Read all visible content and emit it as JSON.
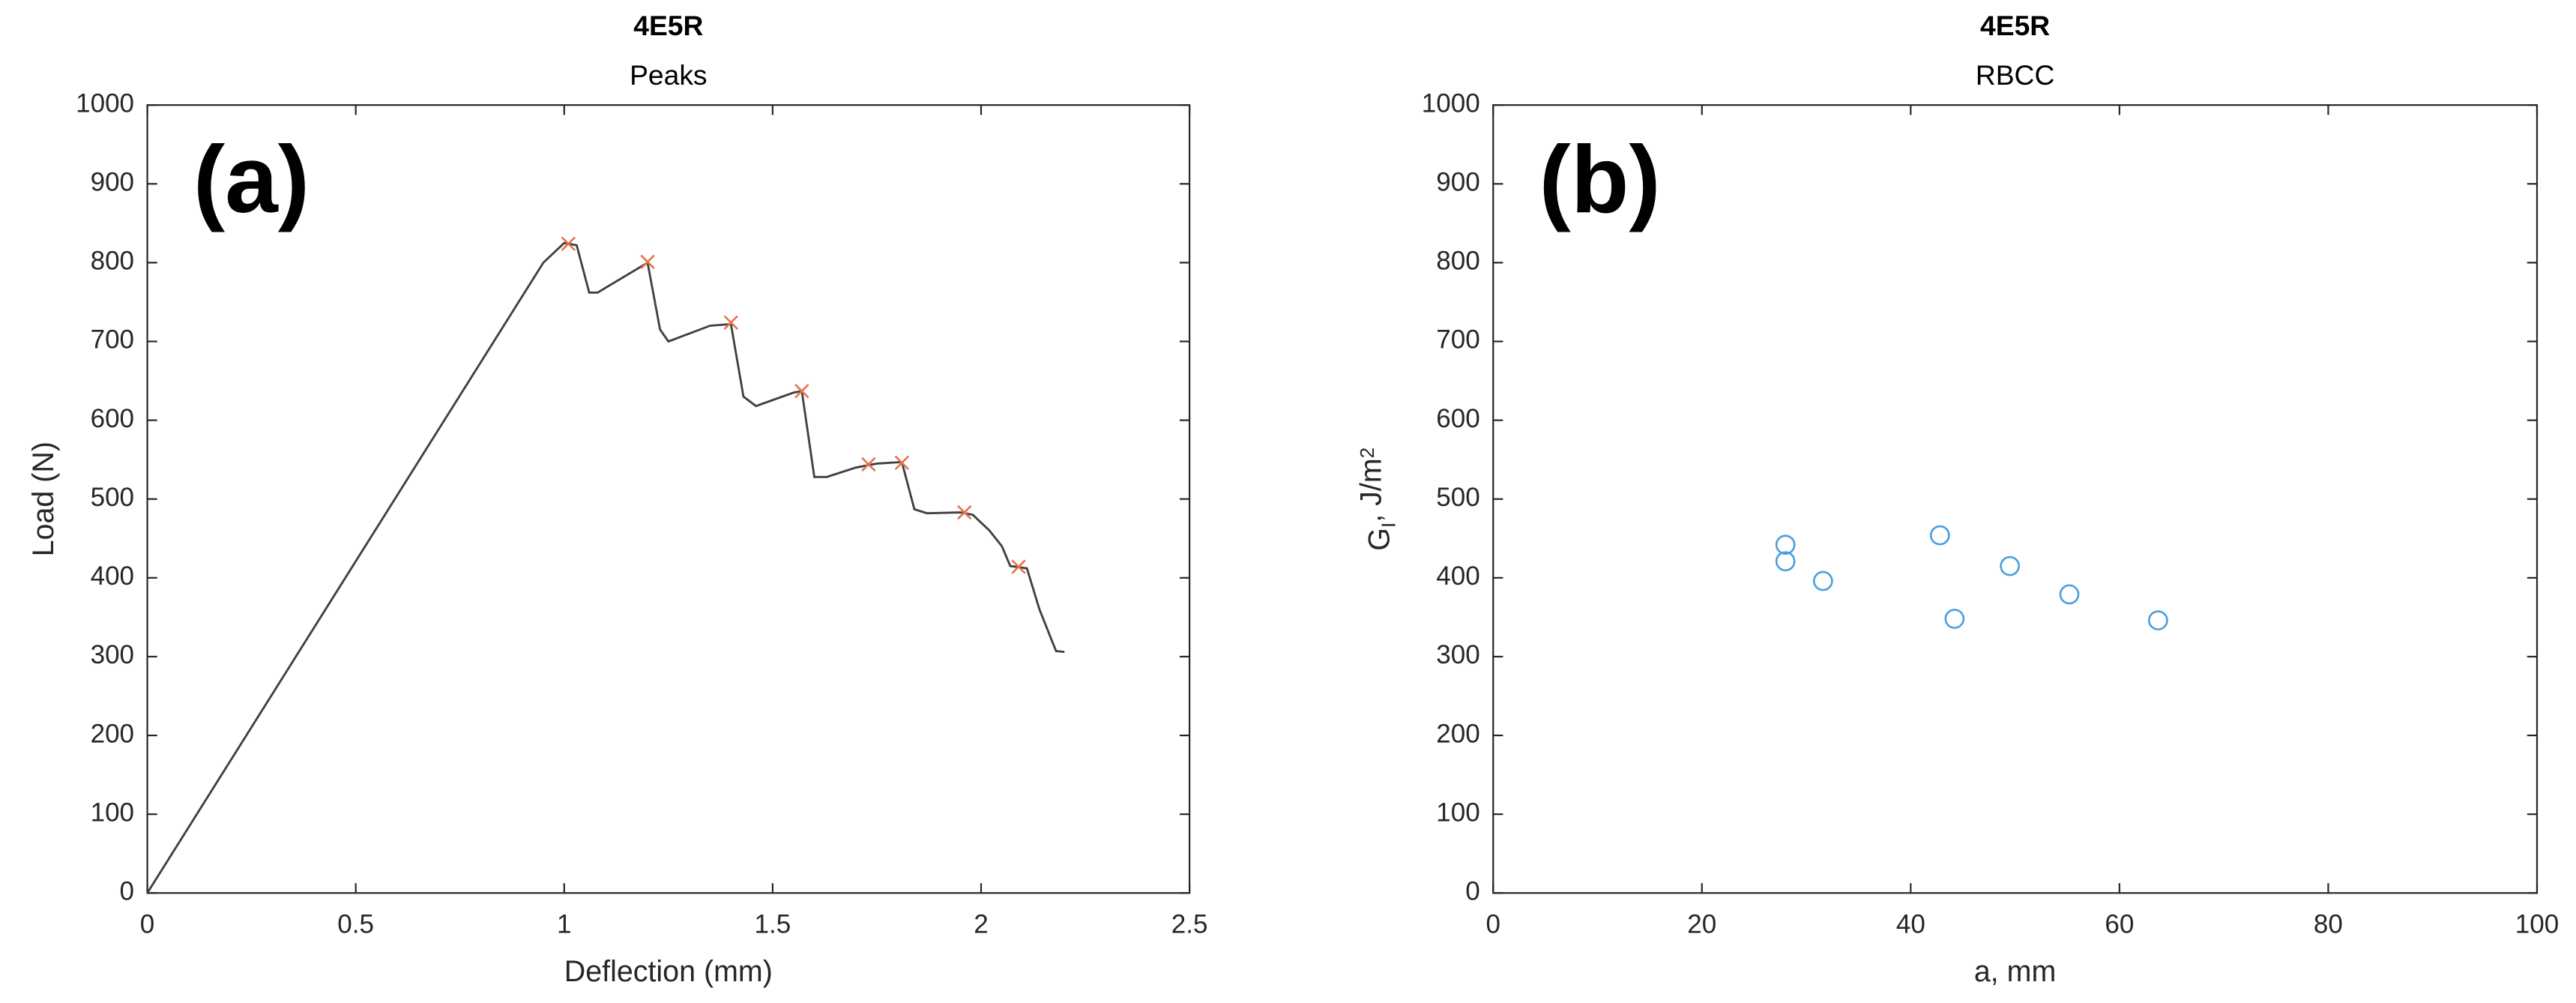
{
  "chart_data": [
    {
      "type": "line",
      "title": "4E5R",
      "subtitle": "Peaks",
      "annotation": "(a)",
      "xlabel": "Deflection (mm)",
      "ylabel": "Load (N)",
      "xlim": [
        0,
        2.5
      ],
      "xticks": [
        0,
        0.5,
        1,
        1.5,
        2,
        2.5
      ],
      "ylim": [
        0,
        1000
      ],
      "yticks": [
        0,
        100,
        200,
        300,
        400,
        500,
        600,
        700,
        800,
        900,
        1000
      ],
      "series": [
        {
          "color": "#404040",
          "marker": "none",
          "x": [
            0,
            0.95,
            1.0,
            1.03,
            1.06,
            1.08,
            1.2,
            1.23,
            1.25,
            1.35,
            1.4,
            1.43,
            1.46,
            1.55,
            1.57,
            1.6,
            1.63,
            1.7,
            1.75,
            1.81,
            1.84,
            1.87,
            1.95,
            1.98,
            2.02,
            2.05,
            2.07,
            2.11,
            2.14,
            2.17,
            2.18,
            2.2
          ],
          "values": [
            0,
            800,
            825,
            822,
            762,
            762,
            800,
            715,
            700,
            720,
            722,
            630,
            618,
            635,
            637,
            528,
            528,
            540,
            545,
            547,
            487,
            482,
            483,
            480,
            460,
            440,
            415,
            412,
            360,
            320,
            307,
            306
          ]
        },
        {
          "color": "#e8734a",
          "marker": "x",
          "x": [
            1.01,
            1.2,
            1.4,
            1.57,
            1.73,
            1.81,
            1.96,
            2.09
          ],
          "values": [
            824,
            801,
            724,
            637,
            544,
            546,
            483,
            414
          ]
        }
      ]
    },
    {
      "type": "scatter",
      "title": "4E5R",
      "subtitle": "RBCC",
      "annotation": "(b)",
      "xlabel": "a, mm",
      "ylabel": [
        "G",
        "I",
        ", J/m",
        "2"
      ],
      "xlim": [
        0,
        100
      ],
      "xticks": [
        0,
        20,
        40,
        60,
        80,
        100
      ],
      "ylim": [
        0,
        1000
      ],
      "yticks": [
        0,
        100,
        200,
        300,
        400,
        500,
        600,
        700,
        800,
        900,
        1000
      ],
      "series": [
        {
          "color": "#4a9fdc",
          "marker": "o",
          "x": [
            28.0,
            28.0,
            31.6,
            42.8,
            44.2,
            49.5,
            55.2,
            63.7
          ],
          "values": [
            442,
            421,
            396,
            454,
            348,
            415,
            379,
            346
          ]
        }
      ]
    }
  ]
}
